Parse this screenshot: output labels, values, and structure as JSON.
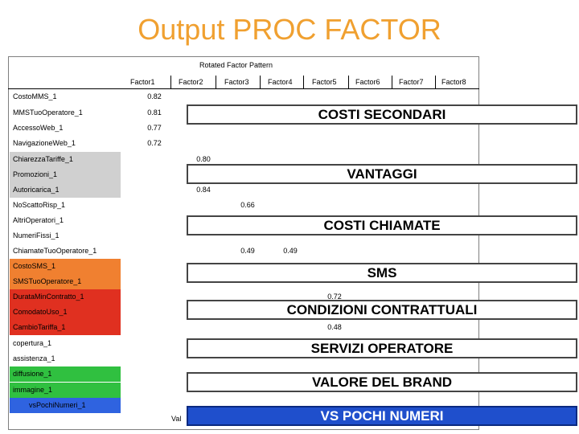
{
  "title": "Output PROC FACTOR",
  "pattern_title": "Rotated Factor Pattern",
  "factors": [
    "Factor1",
    "Factor2",
    "Factor3",
    "Factor4",
    "Factor5",
    "Factor6",
    "Factor7",
    "Factor8"
  ],
  "rows": [
    {
      "label": "CostoMMS_1",
      "color": "#ffffff",
      "v": "0.82"
    },
    {
      "label": "MMSTuoOperatore_1",
      "color": "#ffffff",
      "v": "0.81"
    },
    {
      "label": "AccessoWeb_1",
      "color": "#ffffff",
      "v": "0.77"
    },
    {
      "label": "NavigazioneWeb_1",
      "color": "#ffffff",
      "v": "0.72"
    },
    {
      "label": "ChiarezzaTariffe_1",
      "color": "#d0d0d0",
      "v": "0.80"
    },
    {
      "label": "Promozioni_1",
      "color": "#d0d0d0",
      "v": ""
    },
    {
      "label": "Autoricarica_1",
      "color": "#d0d0d0",
      "v": "0.84"
    },
    {
      "label": "NoScattoRisp_1",
      "color": "#ffffff",
      "v": "0.66"
    },
    {
      "label": "AltriOperatori_1",
      "color": "#ffffff",
      "v": ""
    },
    {
      "label": "NumeriFissi_1",
      "color": "#ffffff",
      "v": ""
    },
    {
      "label": "ChiamateTuoOperatore_1",
      "color": "#ffffff",
      "v": "0.49"
    },
    {
      "label": "CostoSMS_1",
      "color": "#f08030",
      "v": ""
    },
    {
      "label": "SMSTuoOperatore_1",
      "color": "#f08030",
      "v": ""
    },
    {
      "label": "DurataMinContratto_1",
      "color": "#e03020",
      "v": "0.72"
    },
    {
      "label": "ComodatoUso_1",
      "color": "#e03020",
      "v": ""
    },
    {
      "label": "CambioTariffa_1",
      "color": "#e03020",
      "v": "0.48"
    },
    {
      "label": "copertura_1",
      "color": "#ffffff",
      "v": ""
    },
    {
      "label": "assistenza_1",
      "color": "#ffffff",
      "v": ""
    },
    {
      "label": "diffusione_1",
      "color": "#30c040",
      "v": ""
    },
    {
      "label": "immagine_1",
      "color": "#30c040",
      "v": ""
    },
    {
      "label": "vsPochiNumeri_1",
      "color": "#2f63e0",
      "v": ""
    }
  ],
  "extra_values": {
    "chiamate_f4": "0.49"
  },
  "banners": {
    "costi_secondari": "COSTI SECONDARI",
    "vantaggi": "VANTAGGI",
    "costi_chiamate": "COSTI CHIAMATE",
    "sms": "SMS",
    "condizioni": "CONDIZIONI CONTRATTUALI",
    "servizi": "SERVIZI OPERATORE",
    "brand": "VALORE DEL BRAND",
    "pochi": "VS POCHI NUMERI"
  },
  "partial_label": "Val"
}
